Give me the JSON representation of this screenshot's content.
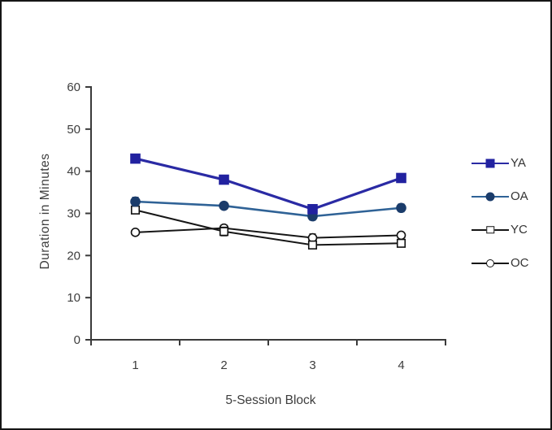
{
  "chart_data": {
    "type": "line",
    "title": "",
    "xlabel": "5-Session Block",
    "ylabel": "Duration in Minutes",
    "x_categories": [
      "1",
      "2",
      "3",
      "4"
    ],
    "y_ticks": [
      0,
      10,
      20,
      30,
      40,
      50,
      60
    ],
    "ylim": [
      0,
      60
    ],
    "grid": "off",
    "legend_position": "right",
    "axis_color": "#3a3a3a",
    "series": [
      {
        "name": "YA",
        "marker": "filled-square",
        "color": "#2A2AA4",
        "marker_fill": "#2222A0",
        "marker_stroke": "#2222A0",
        "line_width": 3.2,
        "marker_size": 11,
        "values": [
          43.0,
          38.0,
          31.0,
          38.4
        ],
        "errors": [
          0.8,
          0.6,
          0.9,
          0.7
        ]
      },
      {
        "name": "OA",
        "marker": "filled-circle",
        "color": "#2F6296",
        "marker_fill": "#1B3C6B",
        "marker_stroke": "#1B3C6B",
        "line_width": 2.6,
        "marker_size": 11,
        "values": [
          32.8,
          31.8,
          29.3,
          31.3
        ],
        "errors": [
          1.0,
          0.8,
          0.9,
          0.9
        ]
      },
      {
        "name": "YC",
        "marker": "open-square",
        "color": "#161616",
        "marker_fill": "#ffffff",
        "marker_stroke": "#111111",
        "line_width": 2,
        "marker_size": 9.5,
        "values": [
          30.8,
          25.7,
          22.5,
          22.9
        ],
        "errors": [
          0.8,
          1.0,
          0.8,
          0.6
        ]
      },
      {
        "name": "OC",
        "marker": "open-circle",
        "color": "#161616",
        "marker_fill": "#ffffff",
        "marker_stroke": "#111111",
        "line_width": 2,
        "marker_size": 10,
        "values": [
          25.5,
          26.5,
          24.2,
          24.8
        ],
        "errors": [
          0.6,
          0.7,
          0.9,
          0.5
        ]
      }
    ]
  }
}
